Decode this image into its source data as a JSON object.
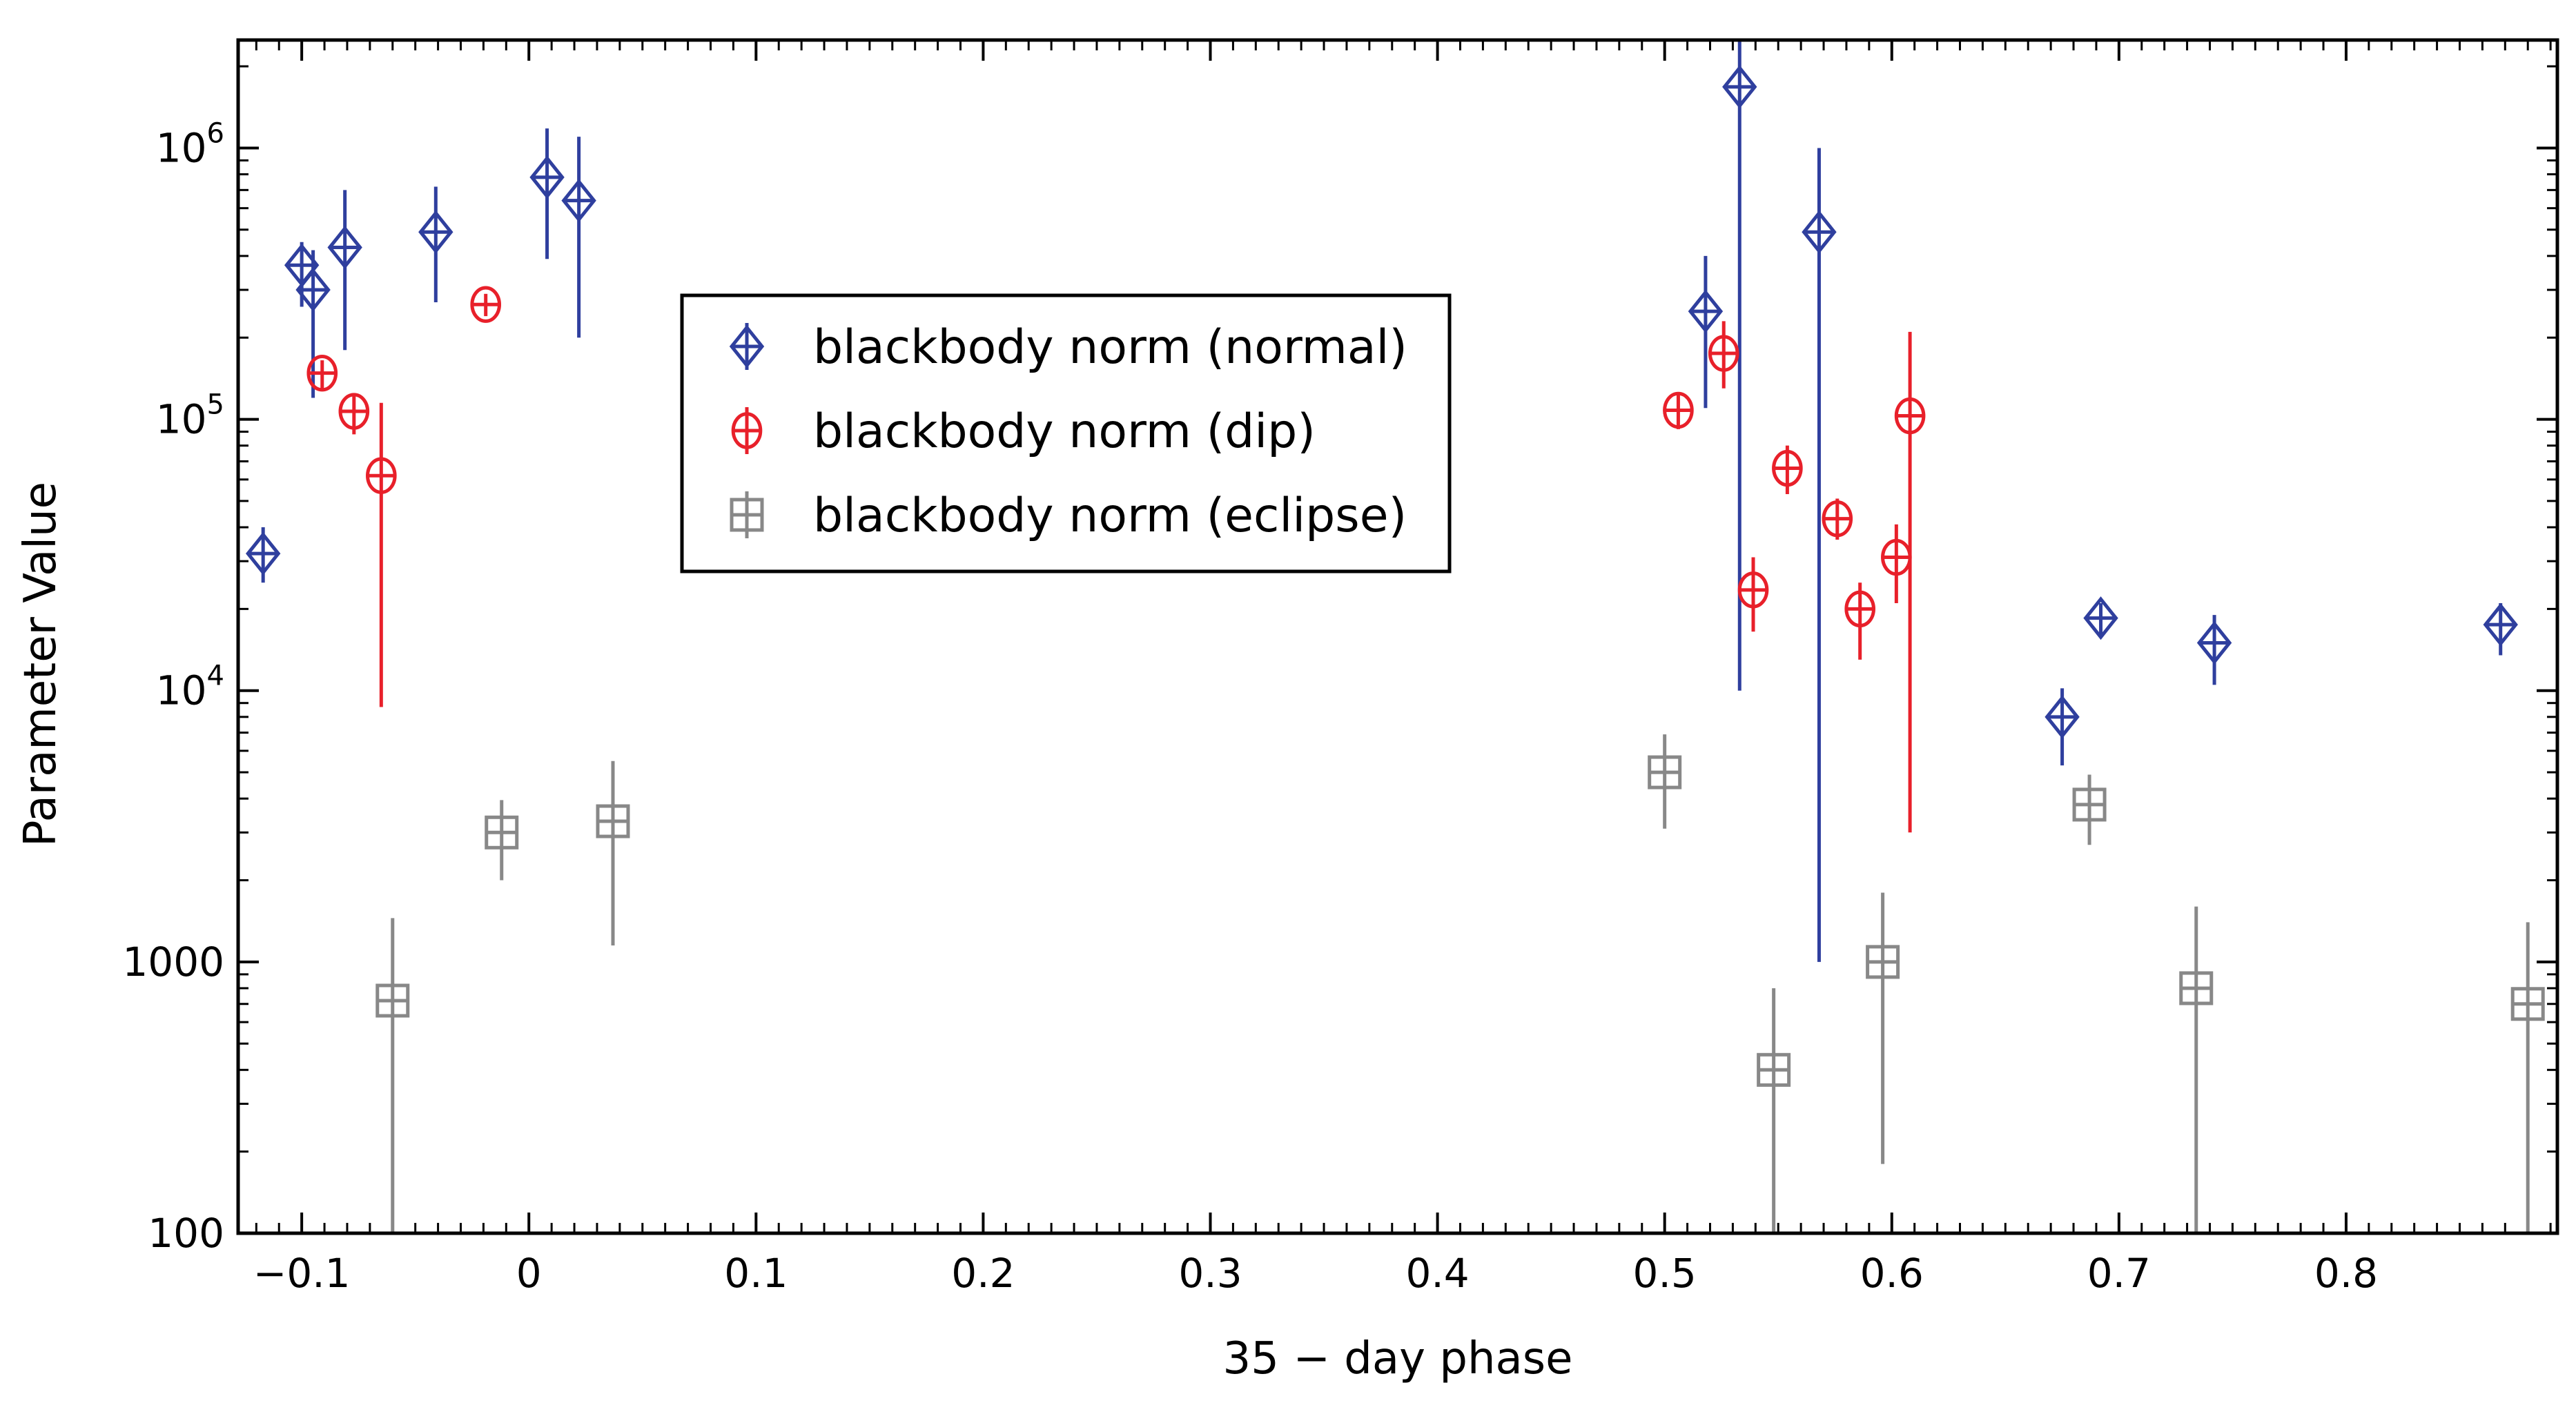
{
  "chart_data": {
    "type": "scatter",
    "title": "",
    "xlabel": "35 − day phase",
    "ylabel": "Parameter Value",
    "xlim": [
      -0.128,
      0.893
    ],
    "ylim": [
      100,
      2500000
    ],
    "yscale": "log",
    "xticks": [
      {
        "value": -0.1,
        "label": "−0.1"
      },
      {
        "value": 0,
        "label": "0"
      },
      {
        "value": 0.1,
        "label": "0.1"
      },
      {
        "value": 0.2,
        "label": "0.2"
      },
      {
        "value": 0.3,
        "label": "0.3"
      },
      {
        "value": 0.4,
        "label": "0.4"
      },
      {
        "value": 0.5,
        "label": "0.5"
      },
      {
        "value": 0.6,
        "label": "0.6"
      },
      {
        "value": 0.7,
        "label": "0.7"
      },
      {
        "value": 0.8,
        "label": "0.8"
      }
    ],
    "yticks": [
      {
        "value": 100,
        "base": "100",
        "exp": ""
      },
      {
        "value": 1000,
        "base": "1000",
        "exp": ""
      },
      {
        "value": 10000,
        "base": "10",
        "exp": "4"
      },
      {
        "value": 100000,
        "base": "10",
        "exp": "5"
      },
      {
        "value": 1000000,
        "base": "10",
        "exp": "6"
      }
    ],
    "legend_position": "upper-center",
    "series": [
      {
        "name": "blackbody norm (normal)",
        "marker": "diamond",
        "color": "#2f3f9e",
        "points": [
          {
            "x": -0.117,
            "y": 32000,
            "lo": 25000,
            "hi": 40000
          },
          {
            "x": -0.1,
            "y": 370000,
            "lo": 260000,
            "hi": 450000
          },
          {
            "x": -0.095,
            "y": 300000,
            "lo": 120000,
            "hi": 420000
          },
          {
            "x": -0.081,
            "y": 430000,
            "lo": 180000,
            "hi": 700000
          },
          {
            "x": -0.041,
            "y": 490000,
            "lo": 270000,
            "hi": 720000
          },
          {
            "x": 0.008,
            "y": 780000,
            "lo": 390000,
            "hi": 1180000
          },
          {
            "x": 0.022,
            "y": 640000,
            "lo": 200000,
            "hi": 1100000
          },
          {
            "x": 0.518,
            "y": 250000,
            "lo": 110000,
            "hi": 400000
          },
          {
            "x": 0.533,
            "y": 1680000,
            "lo": 10000,
            "hi": 2500000
          },
          {
            "x": 0.568,
            "y": 490000,
            "lo": 1000,
            "hi": 1000000
          },
          {
            "x": 0.675,
            "y": 8000,
            "lo": 5300,
            "hi": 10200
          },
          {
            "x": 0.692,
            "y": 18500,
            "lo": 16000,
            "hi": 21000
          },
          {
            "x": 0.742,
            "y": 15000,
            "lo": 10500,
            "hi": 19000
          },
          {
            "x": 0.868,
            "y": 17500,
            "lo": 13500,
            "hi": 21000
          }
        ]
      },
      {
        "name": "blackbody norm (dip)",
        "marker": "circle",
        "color": "#e8202a",
        "points": [
          {
            "x": -0.091,
            "y": 148000,
            "lo": 130000,
            "hi": 165000
          },
          {
            "x": -0.077,
            "y": 107000,
            "lo": 88000,
            "hi": 125000
          },
          {
            "x": -0.065,
            "y": 62000,
            "lo": 8700,
            "hi": 115000
          },
          {
            "x": -0.019,
            "y": 265000,
            "lo": 240000,
            "hi": 290000
          },
          {
            "x": 0.506,
            "y": 108000,
            "lo": 92000,
            "hi": 125000
          },
          {
            "x": 0.526,
            "y": 175000,
            "lo": 130000,
            "hi": 230000
          },
          {
            "x": 0.539,
            "y": 23500,
            "lo": 16500,
            "hi": 31000
          },
          {
            "x": 0.554,
            "y": 66000,
            "lo": 53000,
            "hi": 80000
          },
          {
            "x": 0.576,
            "y": 43000,
            "lo": 36000,
            "hi": 51000
          },
          {
            "x": 0.586,
            "y": 20000,
            "lo": 13000,
            "hi": 25000
          },
          {
            "x": 0.602,
            "y": 31000,
            "lo": 21000,
            "hi": 41000
          },
          {
            "x": 0.608,
            "y": 103000,
            "lo": 3000,
            "hi": 210000
          }
        ]
      },
      {
        "name": "blackbody norm (eclipse)",
        "marker": "square",
        "color": "#888888",
        "points": [
          {
            "x": -0.06,
            "y": 720,
            "lo": 100,
            "hi": 1450
          },
          {
            "x": -0.012,
            "y": 3000,
            "lo": 2000,
            "hi": 3950
          },
          {
            "x": 0.037,
            "y": 3300,
            "lo": 1150,
            "hi": 5500
          },
          {
            "x": 0.5,
            "y": 5000,
            "lo": 3100,
            "hi": 6900
          },
          {
            "x": 0.548,
            "y": 400,
            "lo": 100,
            "hi": 800
          },
          {
            "x": 0.596,
            "y": 1000,
            "lo": 180,
            "hi": 1800
          },
          {
            "x": 0.687,
            "y": 3800,
            "lo": 2700,
            "hi": 4900
          },
          {
            "x": 0.734,
            "y": 800,
            "lo": 100,
            "hi": 1600
          },
          {
            "x": 0.88,
            "y": 700,
            "lo": 100,
            "hi": 1400
          }
        ]
      }
    ]
  }
}
